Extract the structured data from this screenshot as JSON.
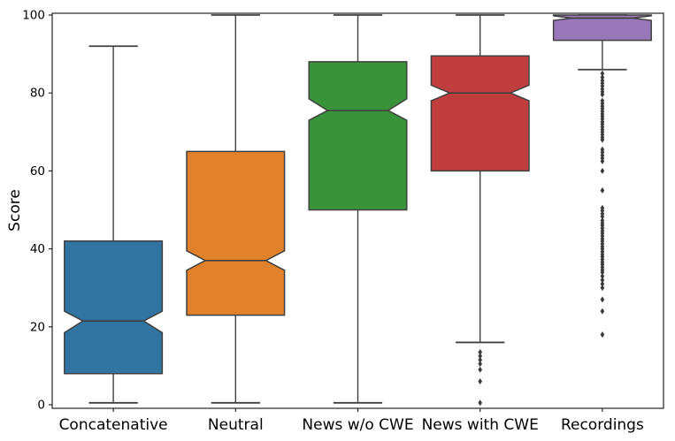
{
  "figure": {
    "background": "#ffffff"
  },
  "chart_data": {
    "type": "boxplot",
    "title": "",
    "xlabel": "",
    "ylabel": "Score",
    "notched": true,
    "grid": false,
    "legend": false,
    "ylim": [
      -1,
      101
    ],
    "yticks": [
      "0",
      "20",
      "40",
      "60",
      "80",
      "100"
    ],
    "ytick_values": [
      0,
      20,
      40,
      60,
      80,
      100
    ],
    "categories": [
      "Concatenative",
      "Neutral",
      "News w/o CWE",
      "News with CWE",
      "Recordings"
    ],
    "spine_color": "#262626",
    "line_color": "#404040",
    "flier_color": "#3a3a3a",
    "series": [
      {
        "label": "Concatenative",
        "color": "#3274a1",
        "whisker_low": 0.5,
        "q1": 8,
        "median": 21.5,
        "q3": 42,
        "whisker_high": 92,
        "notch_low": 18.5,
        "notch_high": 24,
        "fliers": []
      },
      {
        "label": "Neutral",
        "color": "#e1812c",
        "whisker_low": 0.5,
        "q1": 23,
        "median": 37,
        "q3": 65,
        "whisker_high": 100,
        "notch_low": 34.5,
        "notch_high": 39.5,
        "fliers": []
      },
      {
        "label": "News w/o CWE",
        "color": "#3a923a",
        "whisker_low": 0.5,
        "q1": 50,
        "median": 75.5,
        "q3": 88,
        "whisker_high": 100,
        "notch_low": 73,
        "notch_high": 78.5,
        "fliers": []
      },
      {
        "label": "News with CWE",
        "color": "#c03d3e",
        "whisker_low": 16,
        "q1": 60,
        "median": 80,
        "q3": 89.5,
        "whisker_high": 100,
        "notch_low": 78,
        "notch_high": 82,
        "fliers": [
          13.5,
          12.5,
          11.5,
          10.5,
          9,
          6,
          0.5
        ]
      },
      {
        "label": "Recordings",
        "color": "#9878b8",
        "whisker_low": 86,
        "q1": 93.5,
        "median": 99.2,
        "q3": 100,
        "whisker_high": 100,
        "notch_low": 98.6,
        "notch_high": 99.8,
        "fliers": [
          85,
          84,
          83.2,
          82.5,
          81.8,
          81,
          80.3,
          79.6,
          78,
          77.3,
          76.6,
          76,
          75.3,
          74.6,
          74,
          73.3,
          72.6,
          72,
          71.3,
          70.6,
          70,
          69.3,
          68.6,
          68,
          65.5,
          64.8,
          64,
          63.3,
          62.5,
          60,
          55,
          50.5,
          49.8,
          49,
          48.3,
          47.3,
          46.6,
          46,
          45.3,
          44.6,
          44,
          43.3,
          42.6,
          42,
          41.3,
          40.6,
          40,
          39.3,
          38.6,
          38,
          37.3,
          36.6,
          36,
          35.3,
          34.6,
          34,
          33,
          32,
          31,
          30,
          27,
          24,
          18
        ]
      }
    ]
  }
}
